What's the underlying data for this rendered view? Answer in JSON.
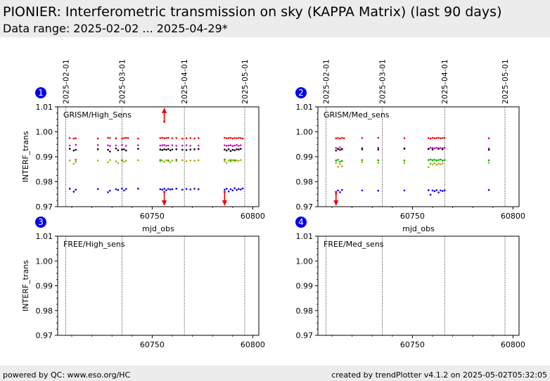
{
  "header": {
    "title": "PIONIER: Interferometric transmission on sky (KAPPA Matrix) (last 90 days)",
    "subtitle": "Data range: 2025-02-02 ... 2025-04-29*"
  },
  "footer": {
    "left": "powered by QC: www.eso.org/HC",
    "right": "created by trendPlotter v4.1.2 on 2025-05-02T05:32:05"
  },
  "colors": {
    "red": "#ee0000",
    "magenta": "#cc00cc",
    "black": "#000000",
    "olive": "#aaaa00",
    "green": "#00aa00",
    "blue": "#0000ee",
    "badge": "#0000ee"
  },
  "chart_data": [
    {
      "type": "scatter",
      "panel": "1",
      "label": "GRISM/High_Sens",
      "xlabel": "mjd_obs",
      "ylabel": "INTERF_trans",
      "xlim": [
        60703,
        60803
      ],
      "ylim": [
        0.97,
        1.01
      ],
      "xticks": [
        60750,
        60800
      ],
      "yticks": [
        "0.97",
        "0.98",
        "0.99",
        "1.00",
        "1.01"
      ],
      "date_lines": [
        {
          "mjd": 60707,
          "label": "2025-02-01"
        },
        {
          "mjd": 60735,
          "label": "2025-03-01"
        },
        {
          "mjd": 60766,
          "label": "2025-04-01"
        },
        {
          "mjd": 60796,
          "label": "2025-05-01"
        }
      ],
      "series": [
        {
          "color": "red",
          "x": [
            60709,
            60711,
            60712,
            60723,
            60728,
            60729,
            60732,
            60735,
            60736,
            60737,
            60738,
            60743,
            60754,
            60755,
            60756,
            60757,
            60758,
            60760,
            60762,
            60765,
            60767,
            60769,
            60771,
            60773,
            60786,
            60787,
            60788,
            60789,
            60790,
            60791,
            60792,
            60793,
            60794,
            60795
          ],
          "y": [
            0.9975,
            0.9973,
            0.9974,
            0.9973,
            0.9976,
            0.9975,
            0.9974,
            0.9973,
            0.9975,
            0.9976,
            0.9975,
            0.9973,
            0.9975,
            0.9976,
            0.9974,
            0.9975,
            0.9976,
            0.9974,
            0.9975,
            0.9973,
            0.9974,
            0.9975,
            0.9973,
            0.9975,
            0.9976,
            0.9974,
            0.9975,
            0.9976,
            0.9973,
            0.9975,
            0.9974,
            0.9976,
            0.9975,
            0.9973
          ]
        },
        {
          "color": "magenta",
          "x": [
            60709,
            60712,
            60723,
            60728,
            60729,
            60732,
            60735,
            60737,
            60743,
            60754,
            60755,
            60756,
            60757,
            60758,
            60760,
            60762,
            60765,
            60767,
            60769,
            60773,
            60786,
            60787,
            60788,
            60789,
            60790,
            60791,
            60792,
            60793,
            60794
          ],
          "y": [
            0.9945,
            0.9948,
            0.9947,
            0.9946,
            0.9943,
            0.9945,
            0.9947,
            0.9944,
            0.9946,
            0.9945,
            0.9946,
            0.9947,
            0.9944,
            0.9945,
            0.9946,
            0.9944,
            0.9945,
            0.9946,
            0.9944,
            0.9945,
            0.9946,
            0.9944,
            0.9945,
            0.9946,
            0.9943,
            0.9945,
            0.9947,
            0.9944,
            0.9946
          ]
        },
        {
          "color": "black",
          "x": [
            60709,
            60711,
            60712,
            60723,
            60728,
            60729,
            60732,
            60733,
            60735,
            60736,
            60737,
            60743,
            60754,
            60755,
            60756,
            60757,
            60758,
            60759,
            60760,
            60762,
            60765,
            60767,
            60769,
            60771,
            60773,
            60786,
            60787,
            60788,
            60789,
            60790,
            60791,
            60792,
            60793,
            60794
          ],
          "y": [
            0.9932,
            0.9925,
            0.9928,
            0.993,
            0.9928,
            0.9921,
            0.9933,
            0.9926,
            0.9929,
            0.993,
            0.9925,
            0.9932,
            0.9929,
            0.9927,
            0.993,
            0.9928,
            0.9931,
            0.9926,
            0.9929,
            0.993,
            0.9928,
            0.9927,
            0.9929,
            0.993,
            0.9931,
            0.9929,
            0.9925,
            0.993,
            0.9923,
            0.9928,
            0.9926,
            0.993,
            0.9929,
            0.9932
          ]
        },
        {
          "color": "olive",
          "x": [
            60709,
            60711,
            60712,
            60723,
            60728,
            60729,
            60732,
            60733,
            60735,
            60736,
            60737,
            60743,
            60754,
            60755,
            60756,
            60757,
            60758,
            60759,
            60760,
            60762,
            60765,
            60767,
            60769,
            60771,
            60773,
            60786,
            60787,
            60788,
            60789,
            60790,
            60791,
            60792,
            60793,
            60794
          ],
          "y": [
            0.9885,
            0.9872,
            0.988,
            0.9885,
            0.9878,
            0.9887,
            0.9882,
            0.9875,
            0.9886,
            0.988,
            0.9884,
            0.9886,
            0.9883,
            0.9885,
            0.988,
            0.9886,
            0.9884,
            0.9878,
            0.9885,
            0.9883,
            0.9886,
            0.9882,
            0.9885,
            0.9884,
            0.9886,
            0.9882,
            0.9876,
            0.9885,
            0.9881,
            0.9886,
            0.9883,
            0.9885,
            0.9884,
            0.9887
          ]
        },
        {
          "color": "green",
          "x": [
            60712,
            60735,
            60754,
            60758,
            60762,
            60786,
            60789,
            60791
          ],
          "y": [
            0.9888,
            0.9886,
            0.9887,
            0.9885,
            0.9888,
            0.9889,
            0.9887,
            0.9886
          ]
        },
        {
          "color": "blue",
          "x": [
            60709,
            60711,
            60712,
            60723,
            60728,
            60729,
            60732,
            60733,
            60735,
            60736,
            60737,
            60743,
            60754,
            60755,
            60756,
            60757,
            60758,
            60759,
            60760,
            60762,
            60765,
            60767,
            60769,
            60771,
            60773,
            60786,
            60787,
            60788,
            60789,
            60790,
            60791,
            60792,
            60793,
            60794,
            60795
          ],
          "y": [
            0.9772,
            0.976,
            0.9768,
            0.9771,
            0.9758,
            0.9764,
            0.977,
            0.9767,
            0.9773,
            0.9765,
            0.9771,
            0.9772,
            0.977,
            0.9768,
            0.9772,
            0.9766,
            0.9771,
            0.9769,
            0.977,
            0.9772,
            0.9768,
            0.9771,
            0.9769,
            0.9772,
            0.977,
            0.9768,
            0.9772,
            0.9761,
            0.977,
            0.9765,
            0.9774,
            0.9767,
            0.9771,
            0.9769,
            0.9773
          ]
        }
      ],
      "outliers": [
        {
          "x": 60756,
          "dir": "up"
        },
        {
          "x": 60756,
          "dir": "down"
        },
        {
          "x": 60786,
          "dir": "down"
        }
      ]
    },
    {
      "type": "scatter",
      "panel": "2",
      "label": "GRISM/Med_sens",
      "xlabel": "mjd_obs",
      "ylabel": "",
      "xlim": [
        60703,
        60803
      ],
      "ylim": [
        0.97,
        1.01
      ],
      "xticks": [
        60750,
        60800
      ],
      "yticks": [
        "0.97",
        "0.98",
        "0.99",
        "1.00",
        "1.01"
      ],
      "date_lines": [
        {
          "mjd": 60707,
          "label": "2025-02-01"
        },
        {
          "mjd": 60735,
          "label": "2025-03-01"
        },
        {
          "mjd": 60766,
          "label": "2025-04-01"
        },
        {
          "mjd": 60796,
          "label": "2025-05-01"
        }
      ],
      "series": [
        {
          "color": "red",
          "x": [
            60712,
            60713,
            60714,
            60715,
            60716,
            60725,
            60733,
            60746,
            60758,
            60759,
            60760,
            60761,
            60762,
            60763,
            60764,
            60765,
            60766,
            60788
          ],
          "y": [
            0.9974,
            0.9975,
            0.9973,
            0.9976,
            0.9974,
            0.9975,
            0.9976,
            0.9974,
            0.9975,
            0.9973,
            0.9976,
            0.9974,
            0.9975,
            0.9976,
            0.9974,
            0.9975,
            0.9976,
            0.9974
          ]
        },
        {
          "color": "magenta",
          "x": [
            60712,
            60713,
            60714,
            60715,
            60725,
            60733,
            60746,
            60758,
            60759,
            60760,
            60761,
            60762,
            60763,
            60764,
            60765,
            60766,
            60788
          ],
          "y": [
            0.9935,
            0.993,
            0.9938,
            0.9932,
            0.9935,
            0.9936,
            0.9934,
            0.9933,
            0.9936,
            0.9935,
            0.9934,
            0.9936,
            0.9933,
            0.9935,
            0.9934,
            0.9936,
            0.9933
          ]
        },
        {
          "color": "black",
          "x": [
            60712,
            60713,
            60714,
            60715,
            60725,
            60733,
            60746,
            60758,
            60760,
            60763,
            60765,
            60788
          ],
          "y": [
            0.9925,
            0.9932,
            0.9928,
            0.993,
            0.993,
            0.9929,
            0.9932,
            0.9931,
            0.9929,
            0.9932,
            0.993,
            0.9928
          ]
        },
        {
          "color": "olive",
          "x": [
            60712,
            60713,
            60714,
            60715,
            60725,
            60733,
            60746,
            60758,
            60759,
            60760,
            60761,
            60762,
            60763,
            60764,
            60765,
            60788
          ],
          "y": [
            0.9875,
            0.986,
            0.987,
            0.9862,
            0.9878,
            0.9876,
            0.9875,
            0.9858,
            0.9872,
            0.9869,
            0.9874,
            0.9868,
            0.9872,
            0.987,
            0.9873,
            0.9876
          ]
        },
        {
          "color": "green",
          "x": [
            60712,
            60713,
            60714,
            60715,
            60725,
            60733,
            60746,
            60758,
            60759,
            60760,
            60761,
            60762,
            60763,
            60764,
            60765,
            60766,
            60788
          ],
          "y": [
            0.9885,
            0.9888,
            0.988,
            0.9883,
            0.9887,
            0.9886,
            0.9885,
            0.9887,
            0.9889,
            0.9886,
            0.9888,
            0.9885,
            0.9887,
            0.9889,
            0.9885,
            0.9887,
            0.9886
          ]
        },
        {
          "color": "blue",
          "x": [
            60712,
            60713,
            60714,
            60715,
            60725,
            60733,
            60746,
            60758,
            60759,
            60760,
            60761,
            60762,
            60763,
            60764,
            60765,
            60766,
            60788
          ],
          "y": [
            0.9752,
            0.9765,
            0.9758,
            0.9767,
            0.9765,
            0.9764,
            0.9765,
            0.9766,
            0.9748,
            0.9765,
            0.9762,
            0.9766,
            0.9757,
            0.9765,
            0.9763,
            0.9766,
            0.9767
          ]
        }
      ],
      "outliers": [
        {
          "x": 60712,
          "dir": "down"
        }
      ]
    },
    {
      "type": "scatter",
      "panel": "3",
      "label": "FREE/High_sens",
      "xlabel": "",
      "ylabel": "INTERF_trans",
      "xlim": [
        60703,
        60803
      ],
      "ylim": [
        0.97,
        1.01
      ],
      "xticks": [
        60750,
        60800
      ],
      "yticks": [
        "0.97",
        "0.98",
        "0.99",
        "1.00",
        "1.01"
      ],
      "date_lines": [
        {
          "mjd": 60707,
          "label": ""
        },
        {
          "mjd": 60735,
          "label": ""
        },
        {
          "mjd": 60766,
          "label": ""
        },
        {
          "mjd": 60796,
          "label": ""
        }
      ],
      "series": [],
      "outliers": []
    },
    {
      "type": "scatter",
      "panel": "4",
      "label": "FREE/Med_sens",
      "xlabel": "",
      "ylabel": "",
      "xlim": [
        60703,
        60803
      ],
      "ylim": [
        0.97,
        1.01
      ],
      "xticks": [
        60750,
        60800
      ],
      "yticks": [
        "0.97",
        "0.98",
        "0.99",
        "1.00",
        "1.01"
      ],
      "date_lines": [
        {
          "mjd": 60707,
          "label": ""
        },
        {
          "mjd": 60735,
          "label": ""
        },
        {
          "mjd": 60766,
          "label": ""
        },
        {
          "mjd": 60796,
          "label": ""
        }
      ],
      "series": [],
      "outliers": []
    }
  ]
}
